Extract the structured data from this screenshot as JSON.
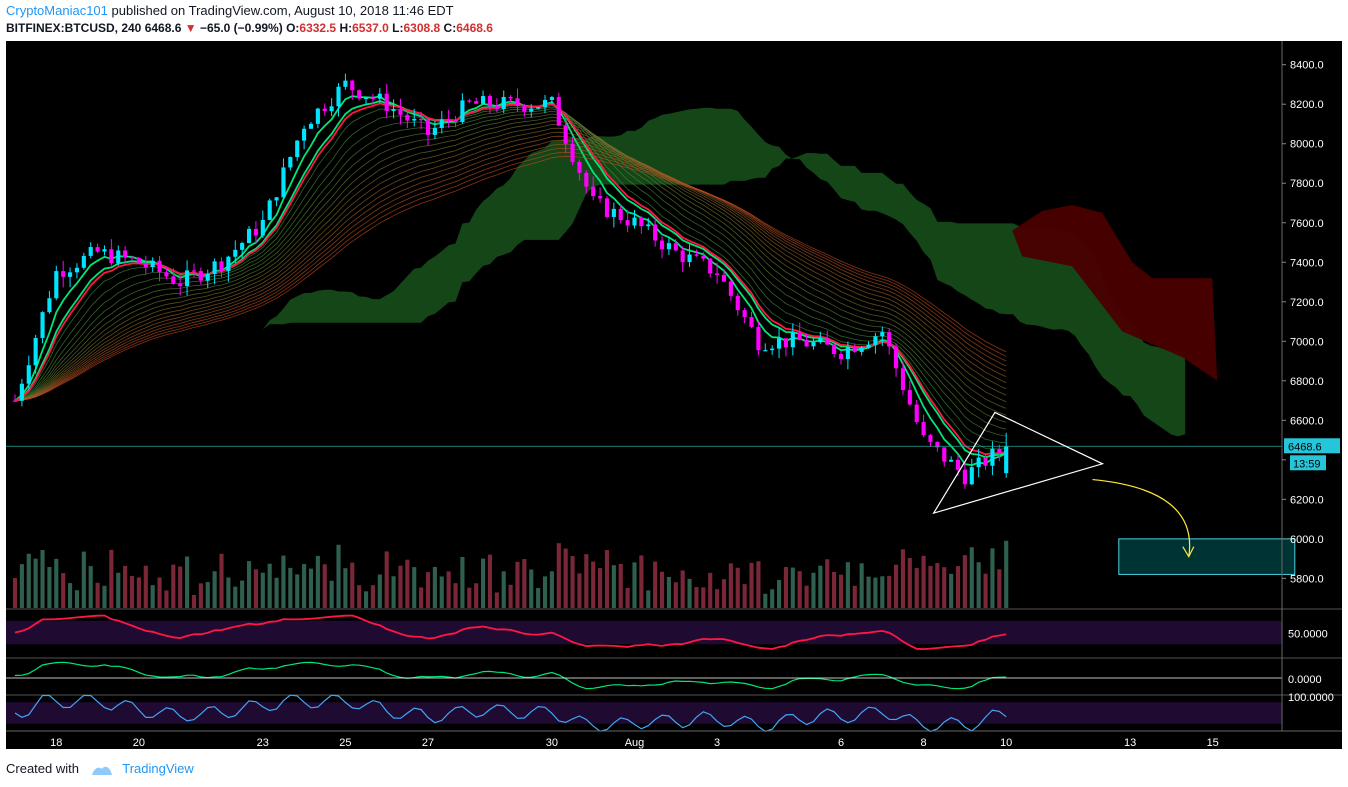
{
  "header": {
    "author": "CryptoManiac101",
    "published_text": "published on TradingView.com, August 10, 2018 11:46 EDT",
    "symbol": "BITFINEX:BTCUSD, 240",
    "last": "6468.6",
    "change": "−65.0 (−0.99%)",
    "o_label": "O:",
    "o_val": "6332.5",
    "h_label": "H:",
    "h_val": "6537.0",
    "l_label": "L:",
    "l_val": "6308.8",
    "c_label": "C:",
    "c_val": "6468.6"
  },
  "footer": {
    "created_with": "Created with",
    "brand": "TradingView"
  },
  "colors": {
    "background": "#000000",
    "bull": "#00e5ff",
    "bear": "#ff00ff",
    "ribbon_fast": "#00e676",
    "ribbon_slow": "#ff1744",
    "cloud_bull": "#1b5e20",
    "cloud_bear": "#4a0000",
    "vol_bull": "#2e5f4f",
    "vol_bear": "#7a2838",
    "axis_text": "#ffffff",
    "price_tag": "#26c6da"
  },
  "chart_data": {
    "type": "candlestick",
    "title": "",
    "price_axis": {
      "ticks": [
        5800,
        6000,
        6200,
        6400,
        6600,
        6800,
        7000,
        7200,
        7400,
        7600,
        7800,
        8000,
        8200,
        8400
      ],
      "tick_labels": [
        "5800.0",
        "6000.0",
        "6200.0",
        "6400.0",
        "6600.0",
        "6800.0",
        "7000.0",
        "7200.0",
        "7400.0",
        "7600.0",
        "7800.0",
        "8000.0",
        "8200.0",
        "8400.0"
      ],
      "range": [
        5650,
        8520
      ]
    },
    "time_axis": {
      "labels": [
        "18",
        "20",
        "23",
        "25",
        "27",
        "30",
        "Aug",
        "3",
        "6",
        "8",
        "10",
        "13",
        "15"
      ]
    },
    "last_price_tag": "6468.6",
    "countdown_tag": "13:59",
    "price_path": [
      [
        "2018-07-17",
        6700
      ],
      [
        "2018-07-18",
        7350
      ],
      [
        "2018-07-19",
        7450
      ],
      [
        "2018-07-20",
        7400
      ],
      [
        "2018-07-21",
        7300
      ],
      [
        "2018-07-22",
        7400
      ],
      [
        "2018-07-23",
        7600
      ],
      [
        "2018-07-24",
        8100
      ],
      [
        "2018-07-25",
        8300
      ],
      [
        "2018-07-26",
        8200
      ],
      [
        "2018-07-27",
        8050
      ],
      [
        "2018-07-28",
        8200
      ],
      [
        "2018-07-29",
        8200
      ],
      [
        "2018-07-30",
        8200
      ],
      [
        "2018-07-31",
        7700
      ],
      [
        "2018-08-01",
        7600
      ],
      [
        "2018-08-02",
        7450
      ],
      [
        "2018-08-03",
        7350
      ],
      [
        "2018-08-04",
        7000
      ],
      [
        "2018-08-05",
        7000
      ],
      [
        "2018-08-06",
        6950
      ],
      [
        "2018-08-07",
        7050
      ],
      [
        "2018-08-08",
        6500
      ],
      [
        "2018-08-09",
        6320
      ],
      [
        "2018-08-10",
        6468.6
      ]
    ],
    "annotations": {
      "triangle": "white",
      "target_box_range": [
        5820,
        6000
      ],
      "arrow": "yellow"
    },
    "indicators": {
      "rsi_tick": "50.0000",
      "macd_tick": "0.0000",
      "stoch_tick": "100.0000"
    }
  }
}
